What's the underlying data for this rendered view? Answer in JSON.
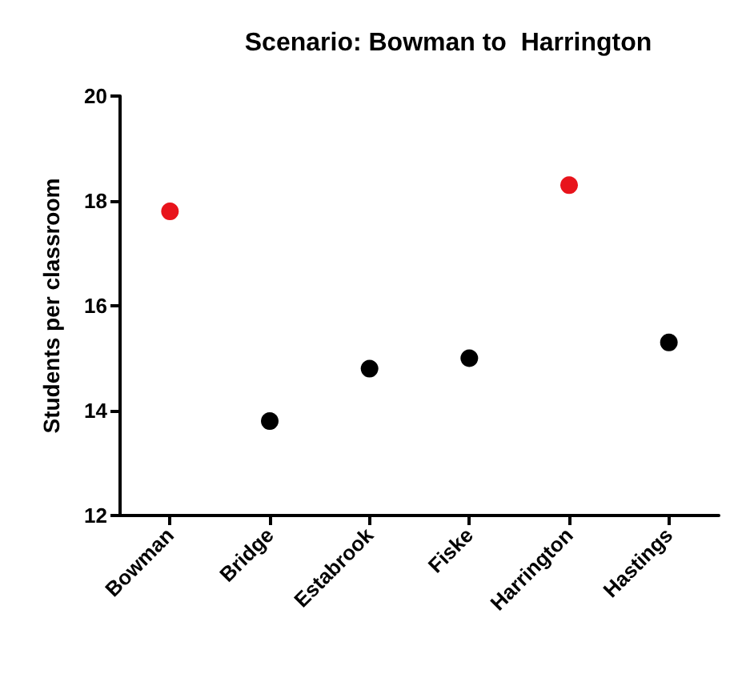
{
  "chart_data": {
    "type": "scatter",
    "title": "Scenario: Bowman to  Harrington",
    "ylabel": "Students per classroom",
    "categories": [
      "Bowman",
      "Bridge",
      "Estabrook",
      "Fiske",
      "Harrington",
      "Hastings"
    ],
    "values": [
      17.8,
      13.8,
      14.8,
      15.0,
      18.3,
      15.3
    ],
    "colors": [
      "#e8141c",
      "#000000",
      "#000000",
      "#000000",
      "#e8141c",
      "#000000"
    ],
    "ylim": [
      12,
      20
    ],
    "yticks": [
      12,
      14,
      16,
      18,
      20
    ],
    "marker": "circle"
  }
}
